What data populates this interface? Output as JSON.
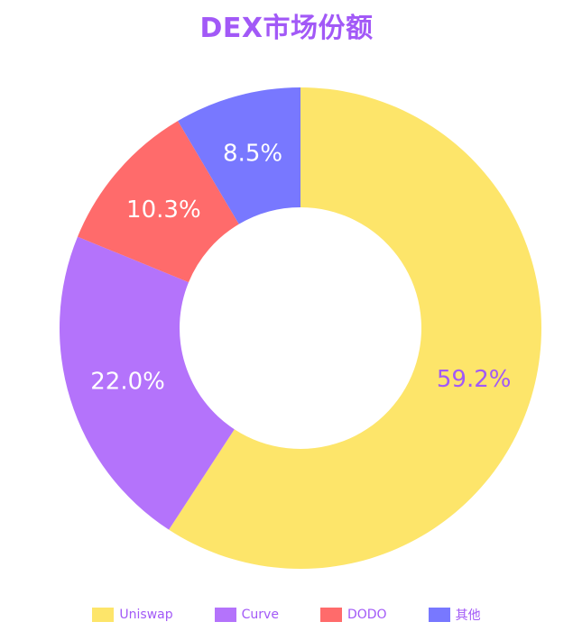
{
  "chart_data": {
    "type": "pie",
    "title": "DEX市场份额",
    "donut": true,
    "start_angle_deg": 0,
    "direction": "clockwise",
    "legend_position": "bottom",
    "slices": [
      {
        "label": "Uniswap",
        "value": 59.2,
        "value_label": "59.2%",
        "color": "#fde56a",
        "label_color": "#a259f7"
      },
      {
        "label": "Curve",
        "value": 22.0,
        "value_label": "22.0%",
        "color": "#b473fb",
        "label_color": "#ffffff"
      },
      {
        "label": "DODO",
        "value": 10.3,
        "value_label": "10.3%",
        "color": "#ff6b6b",
        "label_color": "#ffffff"
      },
      {
        "label": "其他",
        "value": 8.5,
        "value_label": "8.5%",
        "color": "#7878ff",
        "label_color": "#ffffff"
      }
    ]
  },
  "colors": {
    "title": "#a259f7",
    "legend_text": "#a259f7"
  }
}
